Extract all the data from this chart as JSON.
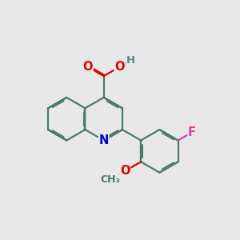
{
  "bg": "#e8e8e8",
  "bond_color": "#4a7a6a",
  "bond_lw": 1.6,
  "atom_colors": {
    "O": "#dd0000",
    "N": "#0000cc",
    "F": "#cc44aa",
    "H": "#558888",
    "C": "#4a7a6a"
  },
  "font_size": 10.5,
  "dpi": 100
}
